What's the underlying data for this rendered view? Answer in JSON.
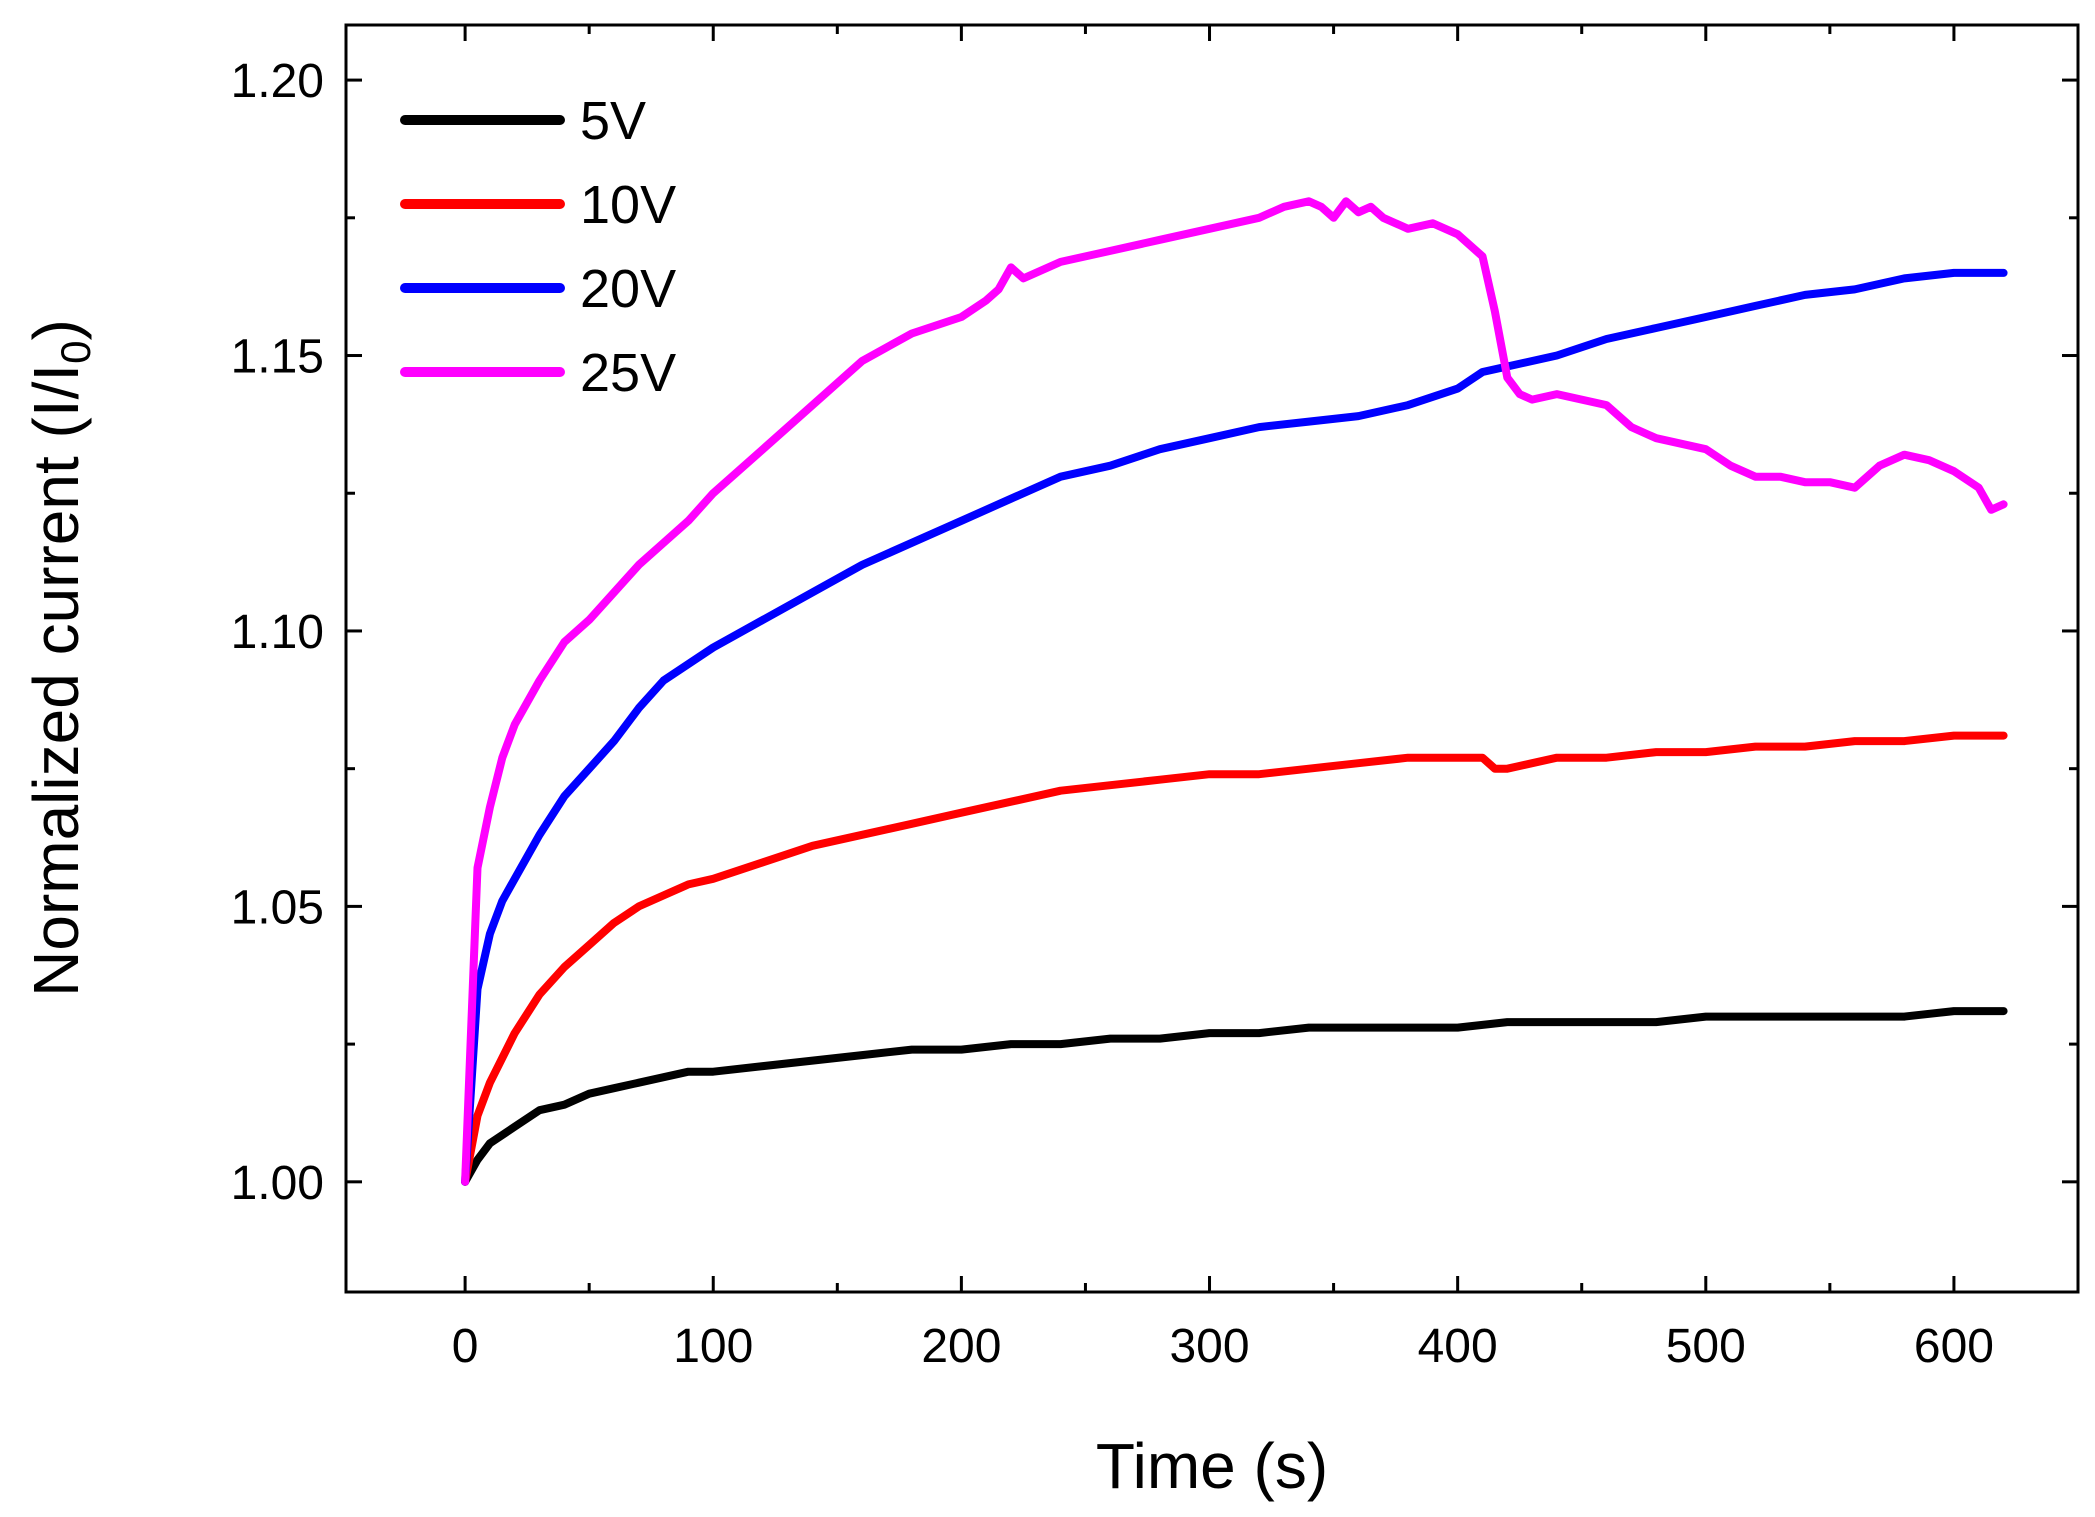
{
  "chart_data": {
    "type": "line",
    "title": "",
    "xlabel": "Time (s)",
    "ylabel": "Normalized current (I/I",
    "ylabel_subscript": "0",
    "ylabel_suffix": ")",
    "xlim": [
      -48,
      650
    ],
    "ylim": [
      0.98,
      1.21
    ],
    "xticks": [
      0,
      100,
      200,
      300,
      400,
      500,
      600
    ],
    "xtick_labels": [
      "0",
      "100",
      "200",
      "300",
      "400",
      "500",
      "600"
    ],
    "yticks": [
      1.0,
      1.05,
      1.1,
      1.15,
      1.2
    ],
    "ytick_labels": [
      "1.00",
      "1.05",
      "1.10",
      "1.15",
      "1.20"
    ],
    "grid": false,
    "legend_position": "top-left",
    "series": [
      {
        "name": "5V",
        "color": "#000000",
        "x": [
          0,
          5,
          10,
          20,
          30,
          40,
          50,
          60,
          70,
          80,
          90,
          100,
          120,
          140,
          160,
          180,
          200,
          220,
          240,
          260,
          280,
          300,
          320,
          340,
          360,
          380,
          400,
          420,
          440,
          460,
          480,
          500,
          520,
          540,
          560,
          580,
          600,
          620
        ],
        "values": [
          1.0,
          1.004,
          1.007,
          1.01,
          1.013,
          1.014,
          1.016,
          1.017,
          1.018,
          1.019,
          1.02,
          1.02,
          1.021,
          1.022,
          1.023,
          1.024,
          1.024,
          1.025,
          1.025,
          1.026,
          1.026,
          1.027,
          1.027,
          1.028,
          1.028,
          1.028,
          1.028,
          1.029,
          1.029,
          1.029,
          1.029,
          1.03,
          1.03,
          1.03,
          1.03,
          1.03,
          1.031,
          1.031
        ]
      },
      {
        "name": "10V",
        "color": "#ff0000",
        "x": [
          0,
          5,
          10,
          20,
          30,
          40,
          50,
          60,
          70,
          80,
          90,
          100,
          120,
          140,
          160,
          180,
          200,
          220,
          240,
          260,
          280,
          300,
          320,
          340,
          360,
          380,
          400,
          410,
          415,
          420,
          430,
          440,
          460,
          480,
          500,
          520,
          540,
          560,
          580,
          600,
          620
        ],
        "values": [
          1.0,
          1.012,
          1.018,
          1.027,
          1.034,
          1.039,
          1.043,
          1.047,
          1.05,
          1.052,
          1.054,
          1.055,
          1.058,
          1.061,
          1.063,
          1.065,
          1.067,
          1.069,
          1.071,
          1.072,
          1.073,
          1.074,
          1.074,
          1.075,
          1.076,
          1.077,
          1.077,
          1.077,
          1.075,
          1.075,
          1.076,
          1.077,
          1.077,
          1.078,
          1.078,
          1.079,
          1.079,
          1.08,
          1.08,
          1.081,
          1.081
        ]
      },
      {
        "name": "20V",
        "color": "#0000ff",
        "x": [
          0,
          5,
          10,
          15,
          20,
          30,
          40,
          50,
          60,
          70,
          80,
          90,
          100,
          120,
          140,
          160,
          180,
          200,
          220,
          240,
          260,
          280,
          300,
          320,
          340,
          360,
          380,
          400,
          410,
          420,
          440,
          460,
          480,
          500,
          520,
          540,
          560,
          580,
          600,
          620
        ],
        "values": [
          1.0,
          1.035,
          1.045,
          1.051,
          1.055,
          1.063,
          1.07,
          1.075,
          1.08,
          1.086,
          1.091,
          1.094,
          1.097,
          1.102,
          1.107,
          1.112,
          1.116,
          1.12,
          1.124,
          1.128,
          1.13,
          1.133,
          1.135,
          1.137,
          1.138,
          1.139,
          1.141,
          1.144,
          1.147,
          1.148,
          1.15,
          1.153,
          1.155,
          1.157,
          1.159,
          1.161,
          1.162,
          1.164,
          1.165,
          1.165
        ]
      },
      {
        "name": "25V",
        "color": "#ff00ff",
        "x": [
          0,
          5,
          10,
          15,
          20,
          30,
          40,
          50,
          60,
          70,
          80,
          90,
          100,
          120,
          140,
          160,
          180,
          200,
          210,
          215,
          220,
          225,
          240,
          260,
          280,
          300,
          320,
          330,
          340,
          345,
          350,
          355,
          360,
          365,
          370,
          380,
          390,
          400,
          410,
          415,
          420,
          425,
          430,
          440,
          450,
          460,
          470,
          480,
          490,
          500,
          510,
          520,
          530,
          540,
          550,
          560,
          570,
          580,
          590,
          600,
          610,
          615,
          620
        ],
        "values": [
          1.0,
          1.057,
          1.068,
          1.077,
          1.083,
          1.091,
          1.098,
          1.102,
          1.107,
          1.112,
          1.116,
          1.12,
          1.125,
          1.133,
          1.141,
          1.149,
          1.154,
          1.157,
          1.16,
          1.162,
          1.166,
          1.164,
          1.167,
          1.169,
          1.171,
          1.173,
          1.175,
          1.177,
          1.178,
          1.177,
          1.175,
          1.178,
          1.176,
          1.177,
          1.175,
          1.173,
          1.174,
          1.172,
          1.168,
          1.158,
          1.146,
          1.143,
          1.142,
          1.143,
          1.142,
          1.141,
          1.137,
          1.135,
          1.134,
          1.133,
          1.13,
          1.128,
          1.128,
          1.127,
          1.127,
          1.126,
          1.13,
          1.132,
          1.131,
          1.129,
          1.126,
          1.122,
          1.123
        ]
      }
    ]
  }
}
